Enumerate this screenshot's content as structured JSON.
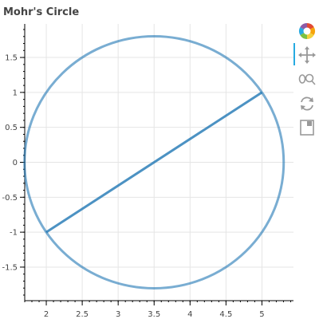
{
  "chart_data": {
    "type": "line",
    "title": "Mohr's Circle",
    "xlabel": "",
    "ylabel": "",
    "xlim": [
      1.7,
      5.45
    ],
    "ylim": [
      -1.98,
      1.98
    ],
    "x_ticks": [
      2,
      2.5,
      3,
      3.5,
      4,
      4.5,
      5
    ],
    "y_ticks": [
      -1.5,
      -1,
      -0.5,
      0,
      0.5,
      1,
      1.5
    ],
    "grid": true,
    "legend": "none",
    "circle": {
      "center": [
        3.5,
        0
      ],
      "radius": 1.8028
    },
    "diameter_line": {
      "x": [
        2,
        5
      ],
      "y": [
        -1,
        1
      ]
    },
    "circle_color": "#1f77b4",
    "line_color": "#1f77b4"
  },
  "toolbar": {
    "tools": [
      {
        "name": "bokeh-logo-icon",
        "interactable": false
      },
      {
        "name": "pan-tool-icon",
        "interactable": true,
        "active": true
      },
      {
        "name": "wheel-zoom-tool-icon",
        "interactable": true
      },
      {
        "name": "reset-tool-icon",
        "interactable": true
      },
      {
        "name": "save-tool-icon",
        "interactable": true
      }
    ],
    "active_color": "#26aae1"
  }
}
